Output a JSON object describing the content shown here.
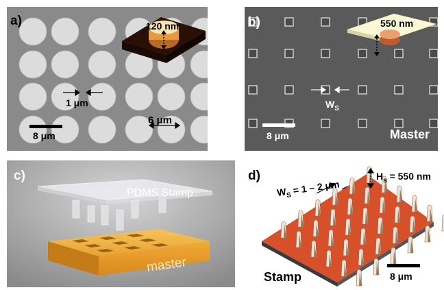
{
  "panels": {
    "a": {
      "label": "a)",
      "inset_height": "120 nm",
      "gap": "1 μm",
      "pitch": "6 μm",
      "scale_bar": "8 μm"
    },
    "b": {
      "label": "b)",
      "inset_height": "550 nm",
      "width_symbol": "W",
      "width_subscript": "S",
      "scale_bar": "8 μm",
      "name": "Master"
    },
    "c": {
      "label": "c)",
      "stamp_label": "PDMS Stamp",
      "master_label": "master"
    },
    "d": {
      "label": "d)",
      "width_symbol": "W",
      "width_subscript": "S",
      "width_value": " = 1 – 2 μm",
      "height_symbol": "H",
      "height_subscript": "s",
      "height_value": " = 550 nm",
      "scale_bar": "8 μm",
      "name": "Stamp"
    }
  },
  "colors": {
    "sem_background": "#8c8c8c",
    "disc": "#dcdcdc",
    "inset_orange": "#e8962e",
    "master_gold": "#f0b040",
    "substrate_red": "#d8502a"
  }
}
